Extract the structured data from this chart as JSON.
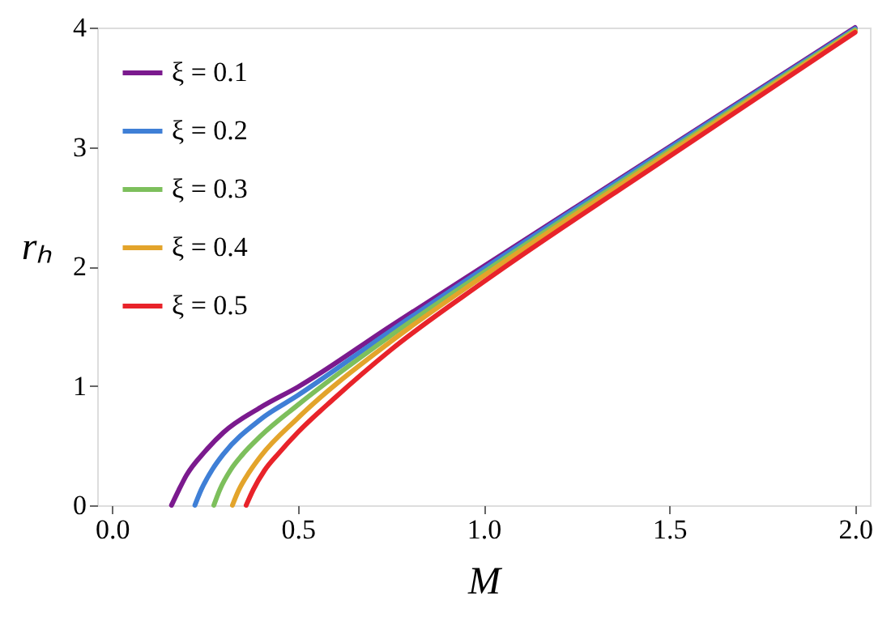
{
  "chart_data": {
    "type": "line",
    "xlabel": "M",
    "ylabel": "rₕ",
    "xlim": [
      -0.04,
      2.04
    ],
    "ylim": [
      0,
      4
    ],
    "xticks": [
      {
        "value": 0,
        "label": "0.0"
      },
      0.5,
      {
        "value": 1,
        "label": "1.0"
      },
      1.5,
      {
        "value": 2,
        "label": "2.0"
      }
    ],
    "yticks": [
      0,
      1,
      2,
      3,
      4
    ],
    "grid": false,
    "legend": "top left",
    "line_style": "solid",
    "marker": "none",
    "series": [
      {
        "name": "ξ = 0.1",
        "color": "#7b1a8e",
        "x": [
          0.16,
          0.18,
          0.2,
          0.25,
          0.3,
          0.4,
          0.5,
          0.75,
          1.0,
          1.5,
          2.0
        ],
        "values": [
          0,
          0.13,
          0.25,
          0.45,
          0.61,
          0.82,
          0.99,
          1.5,
          2.0,
          3.0,
          4.0
        ]
      },
      {
        "name": "ξ = 0.2",
        "color": "#3f7fd6",
        "x": [
          0.223,
          0.24,
          0.27,
          0.3,
          0.4,
          0.5,
          0.75,
          1.0,
          1.5,
          2.0
        ],
        "values": [
          0,
          0.13,
          0.3,
          0.43,
          0.72,
          0.92,
          1.46,
          1.98,
          2.99,
          3.99
        ]
      },
      {
        "name": "ξ = 0.3",
        "color": "#7dbf5c",
        "x": [
          0.274,
          0.29,
          0.32,
          0.35,
          0.4,
          0.5,
          0.75,
          1.0,
          1.5,
          2.0
        ],
        "values": [
          0,
          0.13,
          0.3,
          0.42,
          0.58,
          0.84,
          1.42,
          1.95,
          2.97,
          3.98
        ]
      },
      {
        "name": "ξ = 0.4",
        "color": "#e3a42b",
        "x": [
          0.324,
          0.34,
          0.37,
          0.4,
          0.5,
          0.75,
          1.0,
          1.5,
          2.0
        ],
        "values": [
          0,
          0.12,
          0.28,
          0.41,
          0.73,
          1.37,
          1.92,
          2.95,
          3.97
        ]
      },
      {
        "name": "ξ = 0.5",
        "color": "#e8232a",
        "x": [
          0.361,
          0.38,
          0.41,
          0.45,
          0.5,
          0.6,
          0.75,
          1.0,
          1.5,
          2.0
        ],
        "values": [
          0,
          0.13,
          0.29,
          0.44,
          0.61,
          0.9,
          1.3,
          1.87,
          2.92,
          3.96
        ]
      }
    ]
  }
}
